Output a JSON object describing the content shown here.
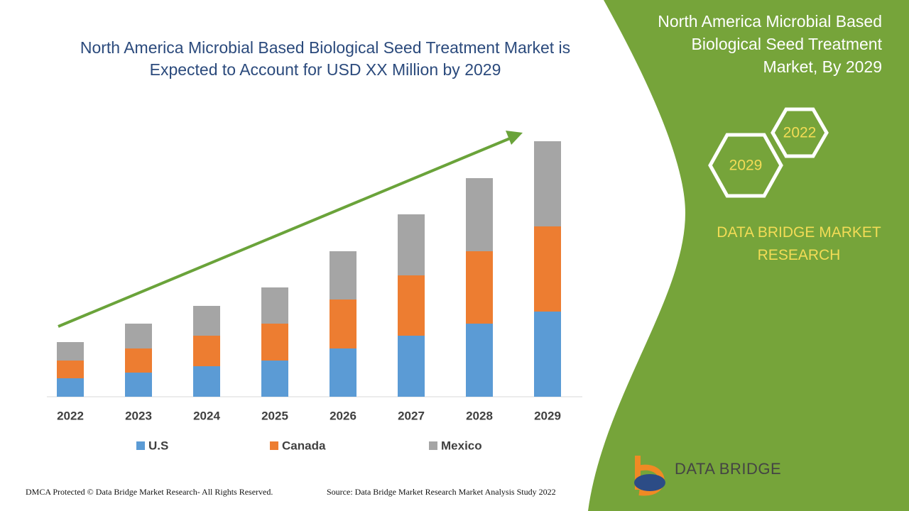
{
  "chart_data": {
    "type": "bar",
    "stacked": true,
    "title": "North America Microbial Based Biological Seed Treatment Market is Expected to Account for USD XX Million by 2029",
    "categories": [
      "2022",
      "2023",
      "2024",
      "2025",
      "2026",
      "2027",
      "2028",
      "2029"
    ],
    "series": [
      {
        "name": "U.S",
        "color": "#5b9bd5",
        "values": [
          26,
          34,
          43,
          51,
          68,
          86,
          103,
          120
        ]
      },
      {
        "name": "Canada",
        "color": "#ed7d31",
        "values": [
          25,
          34,
          43,
          52,
          69,
          85,
          102,
          120
        ]
      },
      {
        "name": "Mexico",
        "color": "#a5a5a5",
        "values": [
          26,
          35,
          42,
          51,
          68,
          86,
          103,
          120
        ]
      }
    ]
  },
  "side_panel": {
    "title": "North America Microbial Based Biological Seed Treatment Market, By 2029",
    "hexagons": [
      "2022",
      "2029"
    ],
    "brand": "DATA BRIDGE MARKET RESEARCH",
    "logo": "DATA BRIDGE"
  },
  "footer": {
    "copyright": "DMCA Protected © Data Bridge Market Research- All Rights Reserved.",
    "source": "Source: Data Bridge Market Research Market Analysis Study 2022"
  }
}
